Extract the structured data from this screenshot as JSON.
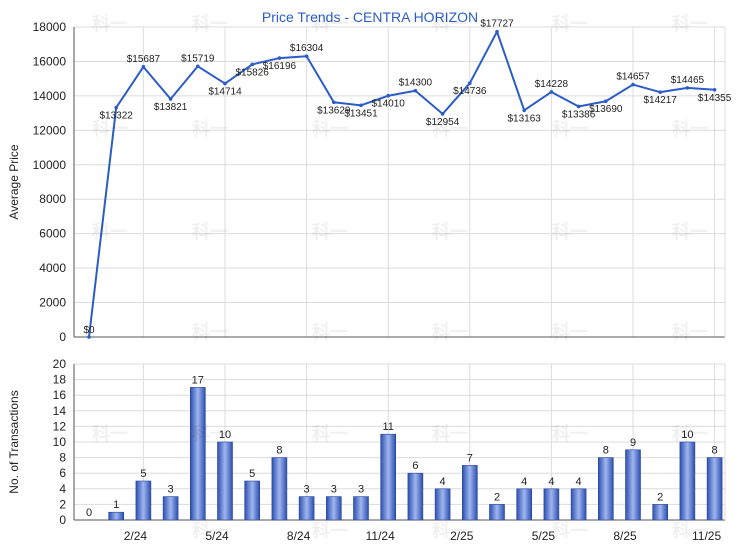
{
  "chart_data": [
    {
      "type": "line",
      "title": "Price Trends - CENTRA HORIZON",
      "ylabel": "Average Price",
      "xlabel": "",
      "ylim": [
        0,
        18000
      ],
      "yticks": [
        0,
        2000,
        4000,
        6000,
        8000,
        10000,
        12000,
        14000,
        16000,
        18000
      ],
      "grid": true,
      "color": "#2b5cc8",
      "point_labels": [
        "$0",
        "$13322",
        "$15687",
        "$13821",
        "$15719",
        "$14714",
        "$15826",
        "$16196",
        "$16304",
        "$13629",
        "$13451",
        "$14010",
        "$14300",
        "$12954",
        "$14736",
        "$17727",
        "$13163",
        "$14228",
        "$13386",
        "$13690",
        "$14657",
        "$14217",
        "$14465",
        "$14355"
      ],
      "values": [
        0,
        13322,
        15687,
        13821,
        15719,
        14714,
        15826,
        16196,
        16304,
        13629,
        13451,
        14010,
        14300,
        12954,
        14736,
        17727,
        13163,
        14228,
        13386,
        13690,
        14657,
        14217,
        14465,
        14355
      ]
    },
    {
      "type": "bar",
      "title": "",
      "ylabel": "No. of Transactions",
      "xlabel": "",
      "ylim": [
        0,
        20
      ],
      "yticks": [
        0,
        2,
        4,
        6,
        8,
        10,
        12,
        14,
        16,
        18,
        20
      ],
      "grid": true,
      "values": [
        0,
        1,
        5,
        3,
        17,
        10,
        5,
        8,
        3,
        3,
        3,
        11,
        6,
        4,
        7,
        2,
        4,
        4,
        4,
        8,
        9,
        2,
        10,
        8
      ],
      "tick_labels": [
        {
          "index": 2,
          "label": "2/24"
        },
        {
          "index": 5,
          "label": "5/24"
        },
        {
          "index": 8,
          "label": "8/24"
        },
        {
          "index": 11,
          "label": "11/24"
        },
        {
          "index": 14,
          "label": "2/25"
        },
        {
          "index": 17,
          "label": "5/25"
        },
        {
          "index": 20,
          "label": "8/25"
        },
        {
          "index": 23,
          "label": "11/25"
        }
      ]
    }
  ],
  "watermark": "科一",
  "colors": {
    "line": "#2b5cc8",
    "bar_dark": "#2c4fb0",
    "bar_light": "#9fb6ee",
    "grid": "#dcdcdc",
    "axis": "#555555",
    "title": "#2b5cc8"
  }
}
